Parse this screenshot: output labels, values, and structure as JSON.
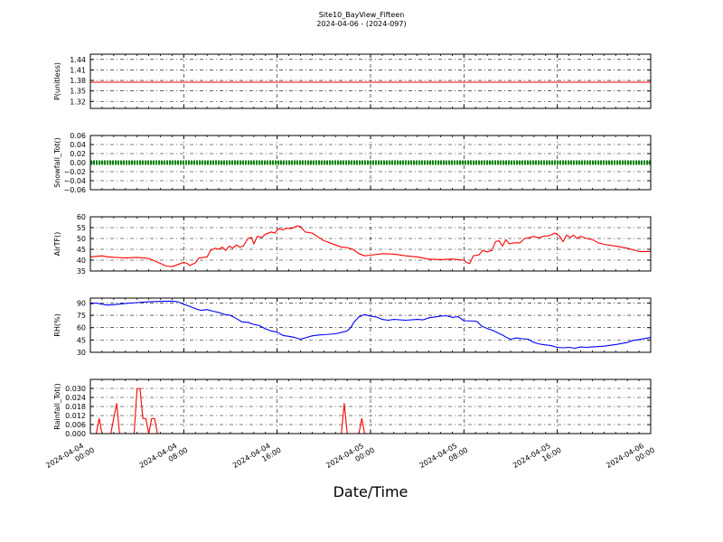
{
  "chart_data": {
    "type": "line",
    "title": "Site10_BayView_Fifteen",
    "subtitle": "2024-04-06 - (2024-097)",
    "xlabel": "Date/Time",
    "x_ticks": [
      {
        "h": 0,
        "line1": "2024-04-04",
        "line2": "00:00"
      },
      {
        "h": 8,
        "line1": "2024-04-04",
        "line2": "08:00"
      },
      {
        "h": 16,
        "line1": "2024-04-04",
        "line2": "16:00"
      },
      {
        "h": 24,
        "line1": "2024-04-05",
        "line2": "00:00"
      },
      {
        "h": 32,
        "line1": "2024-04-05",
        "line2": "08:00"
      },
      {
        "h": 40,
        "line1": "2024-04-05",
        "line2": "16:00"
      },
      {
        "h": 48,
        "line1": "2024-04-06",
        "line2": "00:00"
      }
    ],
    "xlim_hours": [
      0,
      48
    ],
    "grid": true,
    "panels": [
      {
        "ylabel": "P(unitless)",
        "ylim": [
          1.3,
          1.455
        ],
        "yticks": [
          "1.32",
          "1.35",
          "1.38",
          "1.41",
          "1.44"
        ],
        "color": "#ff0000",
        "style": "line",
        "series": [
          [
            0,
            1.375
          ],
          [
            48,
            1.375
          ]
        ]
      },
      {
        "ylabel": "Snowfall_Tot()",
        "ylim": [
          -0.06,
          0.06
        ],
        "yticks": [
          "−0.06",
          "−0.04",
          "−0.02",
          "0.00",
          "0.02",
          "0.04",
          "0.06"
        ],
        "color": "#008000",
        "style": "markers",
        "series": [
          [
            0,
            0.0
          ],
          [
            48,
            0.0
          ]
        ]
      },
      {
        "ylabel": "AirTF()",
        "ylim": [
          35,
          60
        ],
        "yticks": [
          "35",
          "40",
          "45",
          "50",
          "55",
          "60"
        ],
        "color": "#ff0000",
        "style": "line",
        "series": [
          [
            0,
            41.5
          ],
          [
            1,
            42.0
          ],
          [
            1.5,
            41.5
          ],
          [
            3,
            41.0
          ],
          [
            4,
            41.3
          ],
          [
            5,
            40.8
          ],
          [
            6,
            38.5
          ],
          [
            6.5,
            37.3
          ],
          [
            7,
            37.0
          ],
          [
            7.5,
            38.0
          ],
          [
            8,
            39.0
          ],
          [
            8.3,
            38.5
          ],
          [
            8.5,
            37.5
          ],
          [
            9,
            38.8
          ],
          [
            9.3,
            41.0
          ],
          [
            10,
            41.5
          ],
          [
            10.3,
            44.5
          ],
          [
            10.7,
            45.5
          ],
          [
            11,
            45.0
          ],
          [
            11.3,
            46.0
          ],
          [
            11.6,
            44.5
          ],
          [
            11.9,
            46.5
          ],
          [
            12.2,
            45.5
          ],
          [
            12.5,
            47.0
          ],
          [
            12.8,
            46.0
          ],
          [
            13.1,
            46.5
          ],
          [
            13.5,
            50.0
          ],
          [
            13.8,
            50.5
          ],
          [
            14,
            47.5
          ],
          [
            14.3,
            51.0
          ],
          [
            14.7,
            50.5
          ],
          [
            15,
            52.0
          ],
          [
            15.5,
            53.0
          ],
          [
            15.8,
            52.5
          ],
          [
            16.1,
            54.5
          ],
          [
            16.5,
            54.0
          ],
          [
            16.8,
            54.8
          ],
          [
            17.2,
            54.5
          ],
          [
            17.7,
            55.8
          ],
          [
            18,
            55.5
          ],
          [
            18.4,
            53.0
          ],
          [
            19,
            52.5
          ],
          [
            20,
            49.0
          ],
          [
            21,
            47.0
          ],
          [
            21.5,
            46.0
          ],
          [
            22,
            45.8
          ],
          [
            22.5,
            45.0
          ],
          [
            23,
            43.0
          ],
          [
            23.5,
            42.0
          ],
          [
            24,
            42.3
          ],
          [
            25,
            43.0
          ],
          [
            26,
            42.8
          ],
          [
            27,
            42.0
          ],
          [
            28,
            41.5
          ],
          [
            29,
            40.5
          ],
          [
            30,
            40.3
          ],
          [
            31,
            40.5
          ],
          [
            32,
            40.0
          ],
          [
            32.2,
            39.0
          ],
          [
            32.5,
            38.5
          ],
          [
            32.8,
            42.0
          ],
          [
            33.3,
            42.5
          ],
          [
            33.6,
            44.5
          ],
          [
            34,
            43.8
          ],
          [
            34.4,
            44.5
          ],
          [
            34.7,
            48.5
          ],
          [
            35,
            49.0
          ],
          [
            35.3,
            46.5
          ],
          [
            35.6,
            49.5
          ],
          [
            35.9,
            47.5
          ],
          [
            36.3,
            48.0
          ],
          [
            36.8,
            48.0
          ],
          [
            37.2,
            50.0
          ],
          [
            37.7,
            50.5
          ],
          [
            38,
            51.0
          ],
          [
            38.4,
            50.3
          ],
          [
            38.8,
            51.0
          ],
          [
            39.3,
            51.3
          ],
          [
            39.8,
            52.5
          ],
          [
            40.2,
            51.0
          ],
          [
            40.5,
            48.5
          ],
          [
            40.8,
            51.5
          ],
          [
            41.1,
            50.5
          ],
          [
            41.4,
            51.5
          ],
          [
            41.7,
            50.0
          ],
          [
            42,
            51.0
          ],
          [
            42.5,
            50.0
          ],
          [
            43,
            49.5
          ],
          [
            43.5,
            48.0
          ],
          [
            44,
            47.3
          ],
          [
            45,
            46.5
          ],
          [
            46,
            45.5
          ],
          [
            46.5,
            44.8
          ],
          [
            47,
            44.0
          ],
          [
            48,
            44.0
          ]
        ]
      },
      {
        "ylabel": "RH(%)",
        "ylim": [
          30,
          96
        ],
        "yticks": [
          "30",
          "45",
          "60",
          "75",
          "90"
        ],
        "color": "#0000ff",
        "style": "line",
        "series": [
          [
            0,
            89
          ],
          [
            0.5,
            90
          ],
          [
            1,
            88.5
          ],
          [
            1.5,
            87.5
          ],
          [
            2,
            88
          ],
          [
            3,
            89.5
          ],
          [
            4,
            90.5
          ],
          [
            5,
            91.5
          ],
          [
            6,
            92.0
          ],
          [
            7,
            92.3
          ],
          [
            7.5,
            91.5
          ],
          [
            8,
            88.5
          ],
          [
            8.5,
            86.0
          ],
          [
            9,
            83.0
          ],
          [
            9.5,
            81.0
          ],
          [
            10,
            82.0
          ],
          [
            10.5,
            80.0
          ],
          [
            11,
            78.5
          ],
          [
            11.5,
            76.0
          ],
          [
            12,
            75.0
          ],
          [
            12.5,
            71.0
          ],
          [
            13,
            67.0
          ],
          [
            13.5,
            66.5
          ],
          [
            14,
            64.0
          ],
          [
            14.5,
            62.5
          ],
          [
            15,
            58.5
          ],
          [
            15.5,
            56.0
          ],
          [
            16,
            54.5
          ],
          [
            16.5,
            50.5
          ],
          [
            17,
            49.5
          ],
          [
            17.5,
            48.0
          ],
          [
            18,
            46.0
          ],
          [
            18.5,
            48.0
          ],
          [
            19,
            50.0
          ],
          [
            19.5,
            51.0
          ],
          [
            20,
            51.5
          ],
          [
            21,
            52.5
          ],
          [
            22,
            56.0
          ],
          [
            22.3,
            60.0
          ],
          [
            22.6,
            67.0
          ],
          [
            23,
            73.0
          ],
          [
            23.5,
            76.0
          ],
          [
            24,
            74.0
          ],
          [
            24.5,
            73.0
          ],
          [
            25,
            70.0
          ],
          [
            25.5,
            69.0
          ],
          [
            26,
            70.0
          ],
          [
            27,
            69.0
          ],
          [
            28,
            70.0
          ],
          [
            28.5,
            69.5
          ],
          [
            29,
            72.0
          ],
          [
            29.5,
            73.0
          ],
          [
            30,
            74.0
          ],
          [
            30.5,
            74.5
          ],
          [
            31,
            72.5
          ],
          [
            31.5,
            73.5
          ],
          [
            32,
            68.5
          ],
          [
            33,
            68.0
          ],
          [
            33.2,
            66.5
          ],
          [
            33.5,
            62.0
          ],
          [
            34,
            59.0
          ],
          [
            34.5,
            56.5
          ],
          [
            35,
            53.0
          ],
          [
            35.3,
            51.0
          ],
          [
            35.6,
            48.5
          ],
          [
            36,
            46.0
          ],
          [
            36.5,
            47.5
          ],
          [
            37,
            46.5
          ],
          [
            37.5,
            46.0
          ],
          [
            38,
            42.0
          ],
          [
            38.5,
            40.0
          ],
          [
            39,
            39.0
          ],
          [
            39.5,
            38.0
          ],
          [
            40,
            36.0
          ],
          [
            40.5,
            35.5
          ],
          [
            41,
            36.0
          ],
          [
            41.5,
            35.0
          ],
          [
            42,
            36.5
          ],
          [
            42.5,
            36.0
          ],
          [
            43,
            36.5
          ],
          [
            44,
            37.5
          ],
          [
            45,
            39.5
          ],
          [
            46,
            42.0
          ],
          [
            46.5,
            44.5
          ],
          [
            47,
            45.5
          ],
          [
            48,
            48.0
          ]
        ]
      },
      {
        "ylabel": "Rainfall_Tot()",
        "ylim": [
          0.0,
          0.036
        ],
        "yticks": [
          "0.000",
          "0.006",
          "0.012",
          "0.018",
          "0.024",
          "0.030"
        ],
        "color": "#ff0000",
        "style": "line",
        "series": [
          [
            0,
            0.0
          ],
          [
            0.5,
            0.0
          ],
          [
            0.75,
            0.01
          ],
          [
            1.0,
            0.0
          ],
          [
            1.5,
            0.0
          ],
          [
            1.75,
            0.0
          ],
          [
            2.0,
            0.01
          ],
          [
            2.25,
            0.02
          ],
          [
            2.5,
            0.0
          ],
          [
            3.5,
            0.0
          ],
          [
            3.75,
            0.0
          ],
          [
            4.0,
            0.03
          ],
          [
            4.25,
            0.03
          ],
          [
            4.5,
            0.01
          ],
          [
            4.75,
            0.01
          ],
          [
            5.0,
            0.0
          ],
          [
            5.25,
            0.01
          ],
          [
            5.5,
            0.01
          ],
          [
            5.75,
            0.0
          ],
          [
            6.0,
            0.0
          ],
          [
            21.5,
            0.0
          ],
          [
            21.75,
            0.02
          ],
          [
            22.0,
            0.0
          ],
          [
            23.0,
            0.0
          ],
          [
            23.25,
            0.01
          ],
          [
            23.5,
            0.0
          ],
          [
            48,
            0.0
          ]
        ]
      }
    ]
  }
}
